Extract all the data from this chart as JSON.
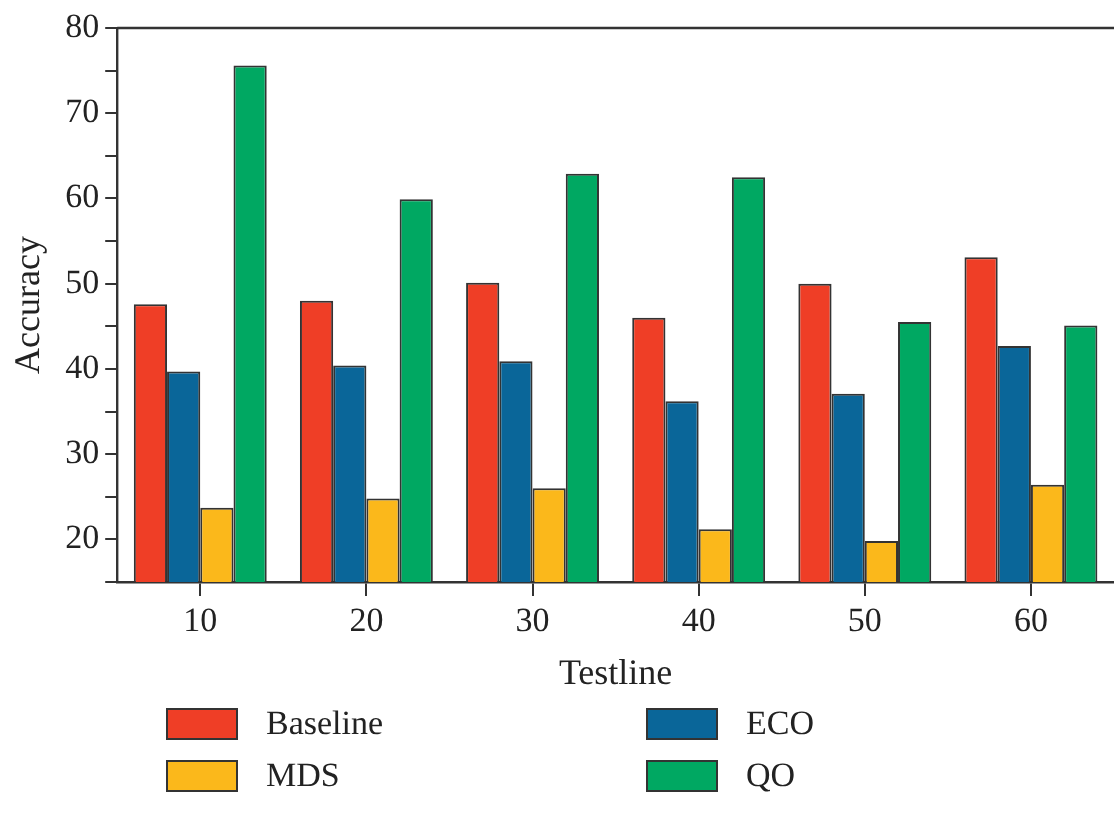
{
  "chart_data": {
    "type": "bar",
    "xlabel": "Testline",
    "ylabel": "Accuracy",
    "categories": [
      "10",
      "20",
      "30",
      "40",
      "50",
      "60"
    ],
    "series": [
      {
        "name": "Baseline",
        "color": "#ef3e26",
        "values": [
          47.6,
          48.0,
          50.1,
          46.0,
          50.0,
          53.1
        ]
      },
      {
        "name": "ECO",
        "color": "#0a6699",
        "values": [
          39.7,
          40.4,
          40.9,
          36.2,
          37.1,
          42.7
        ]
      },
      {
        "name": "MDS",
        "color": "#fbb81b",
        "values": [
          23.7,
          24.8,
          26.0,
          21.2,
          19.8,
          26.4
        ]
      },
      {
        "name": "QO",
        "color": "#00a862",
        "values": [
          75.6,
          59.9,
          62.9,
          62.5,
          45.5,
          45.1
        ]
      }
    ],
    "ylim": [
      15,
      80
    ],
    "yticks": [
      {
        "value": 15,
        "label": null
      },
      20,
      {
        "value": 25,
        "label": null
      },
      30,
      {
        "value": 35,
        "label": null
      },
      40,
      {
        "value": 45,
        "label": null
      },
      50,
      {
        "value": 55,
        "label": null
      },
      60,
      {
        "value": 65,
        "label": null
      },
      70,
      {
        "value": 75,
        "label": null
      },
      80
    ],
    "grid": false,
    "legend": "bottom"
  }
}
